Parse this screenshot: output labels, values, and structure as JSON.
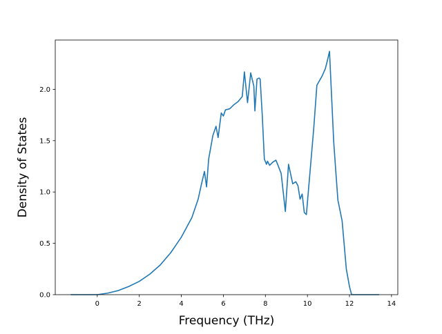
{
  "chart_data": {
    "type": "line",
    "title": "",
    "xlabel": "Frequency (THz)",
    "ylabel": "Density of States",
    "xlim": [
      -2.0,
      14.3
    ],
    "ylim": [
      0.0,
      2.48
    ],
    "xticks": [
      0,
      2,
      4,
      6,
      8,
      10,
      12,
      14
    ],
    "yticks": [
      0.0,
      0.5,
      1.0,
      1.5,
      2.0
    ],
    "xtick_labels": [
      "0",
      "2",
      "4",
      "6",
      "8",
      "10",
      "12",
      "14"
    ],
    "ytick_labels": [
      "0.0",
      "0.5",
      "1.0",
      "1.5",
      "2.0"
    ],
    "grid": false,
    "legend": "none",
    "colors": {
      "line": "#1f77b4"
    },
    "series": [
      {
        "x": [
          -1.25,
          0.0,
          0.5,
          1.0,
          1.5,
          2.0,
          2.5,
          3.0,
          3.5,
          4.0,
          4.5,
          4.8,
          4.95,
          5.1,
          5.2,
          5.3,
          5.5,
          5.65,
          5.75,
          5.9,
          6.0,
          6.1,
          6.3,
          6.5,
          6.7,
          6.9,
          7.0,
          7.15,
          7.3,
          7.45,
          7.5,
          7.6,
          7.7,
          7.75,
          7.85,
          7.95,
          8.05,
          8.1,
          8.2,
          8.35,
          8.5,
          8.6,
          8.75,
          8.95,
          9.1,
          9.3,
          9.45,
          9.55,
          9.65,
          9.75,
          9.85,
          9.95,
          10.05,
          10.2,
          10.3,
          10.45,
          10.7,
          10.85,
          10.95,
          11.05,
          11.25,
          11.35,
          11.45,
          11.65,
          11.85,
          12.0,
          12.1,
          12.2,
          13.4
        ],
        "y": [
          0.0,
          0.0,
          0.015,
          0.04,
          0.08,
          0.13,
          0.2,
          0.29,
          0.41,
          0.56,
          0.75,
          0.93,
          1.07,
          1.2,
          1.05,
          1.32,
          1.55,
          1.64,
          1.53,
          1.77,
          1.74,
          1.8,
          1.81,
          1.85,
          1.88,
          1.93,
          2.17,
          1.87,
          2.16,
          2.03,
          1.79,
          2.1,
          2.11,
          2.1,
          1.75,
          1.32,
          1.27,
          1.3,
          1.26,
          1.29,
          1.31,
          1.26,
          1.18,
          0.81,
          1.27,
          1.08,
          1.1,
          1.06,
          0.93,
          0.98,
          0.8,
          0.78,
          1.02,
          1.38,
          1.62,
          2.04,
          2.13,
          2.2,
          2.28,
          2.37,
          1.49,
          1.2,
          0.92,
          0.72,
          0.25,
          0.08,
          0.0,
          0.0,
          0.0
        ]
      }
    ]
  }
}
